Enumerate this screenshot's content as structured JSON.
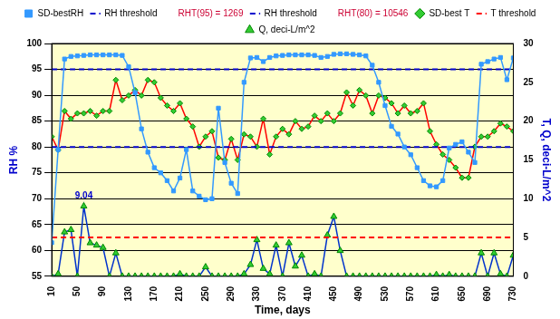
{
  "chart_data": {
    "type": "line",
    "x_label": "Time, days",
    "y_label": "RH %",
    "y2_label": "T, Q, deci-L/m^2",
    "xlim": [
      10,
      730
    ],
    "xticks": [
      10,
      50,
      90,
      130,
      170,
      210,
      250,
      290,
      330,
      370,
      410,
      450,
      490,
      530,
      570,
      610,
      650,
      690,
      730
    ],
    "ylim": [
      55,
      100
    ],
    "yticks": [
      55,
      60,
      65,
      70,
      75,
      80,
      85,
      90,
      95,
      100
    ],
    "y2lim": [
      0,
      30
    ],
    "y2ticks": [
      0,
      5,
      10,
      15,
      20,
      25,
      30
    ],
    "grid": true,
    "legend": "top",
    "x": [
      10,
      20,
      30,
      40,
      50,
      60,
      70,
      80,
      90,
      100,
      110,
      120,
      130,
      140,
      150,
      160,
      170,
      180,
      190,
      200,
      210,
      220,
      230,
      240,
      250,
      260,
      270,
      280,
      290,
      300,
      310,
      320,
      330,
      340,
      350,
      360,
      370,
      380,
      390,
      400,
      410,
      420,
      430,
      440,
      450,
      460,
      470,
      480,
      490,
      500,
      510,
      520,
      530,
      540,
      550,
      560,
      570,
      580,
      590,
      600,
      610,
      620,
      630,
      640,
      650,
      660,
      670,
      680,
      690,
      700,
      710,
      720,
      730
    ],
    "series": [
      {
        "name": "SD-bestRH",
        "color": "#3399ff",
        "marker": "square",
        "line_style": "solid",
        "values": [
          61.5,
          79.5,
          97,
          97.5,
          97.6,
          97.7,
          97.8,
          97.8,
          97.8,
          97.8,
          97.8,
          97.7,
          95.5,
          90.5,
          83.5,
          79,
          76,
          75,
          73.5,
          71.5,
          74,
          79.5,
          71.5,
          70.5,
          69.8,
          70,
          87.5,
          77,
          73,
          71,
          92.5,
          97.2,
          97.3,
          96.5,
          97.3,
          97.6,
          97.7,
          97.8,
          97.8,
          97.8,
          97.8,
          97.7,
          97.3,
          97.5,
          97.9,
          98,
          98,
          97.9,
          97.8,
          97.6,
          95.8,
          92.5,
          88,
          84,
          82.5,
          80,
          78.5,
          76,
          73.5,
          72.5,
          72.3,
          73.5,
          79.8,
          80.5,
          81,
          79,
          77,
          96,
          96.5,
          97,
          97.3,
          93,
          97.2
        ]
      },
      {
        "name": "RH threshold",
        "color": "#0000cc",
        "marker": "none",
        "line_style": "dashed",
        "value": 95,
        "note": "RHT(95) = 1269"
      },
      {
        "name": "RH threshold",
        "color": "#0000cc",
        "marker": "none",
        "line_style": "dashed",
        "value": 80,
        "note": "RHT(80) = 10546"
      },
      {
        "name": "SD-best T",
        "color": "#ff0000",
        "marker": "diamond",
        "line_style": "solid",
        "axis": "y2",
        "values": [
          18,
          16.3,
          21.3,
          20.3,
          21,
          21,
          21.3,
          20.7,
          21.3,
          21.3,
          25.3,
          22.7,
          23.3,
          24,
          23.3,
          25.3,
          25,
          23,
          22,
          21.3,
          22.3,
          20.3,
          19.3,
          16.7,
          18,
          18.7,
          15.3,
          15,
          17.7,
          15,
          18.3,
          18,
          16.7,
          20.3,
          15.7,
          18,
          19,
          18.3,
          20,
          19,
          19.3,
          20.7,
          20,
          21,
          20,
          21,
          23.7,
          22,
          24,
          23.3,
          21,
          23.3,
          23,
          22.3,
          21,
          22,
          21,
          21.3,
          22.3,
          18.7,
          17,
          15.7,
          15,
          14,
          12.7,
          12.7,
          16.7,
          18,
          18,
          18.7,
          19.7,
          19.3,
          18.7
        ]
      },
      {
        "name": "T threshold",
        "color": "#ff0000",
        "marker": "none",
        "line_style": "dashed",
        "axis": "y2",
        "value": 5
      },
      {
        "name": "Q, deci-L/m^2",
        "color": "#0033cc",
        "marker": "triangle",
        "line_style": "solid",
        "axis": "y2",
        "values": [
          0,
          0.3,
          5.7,
          6,
          0,
          9.04,
          4.3,
          4,
          3.7,
          0,
          3,
          0,
          0,
          0,
          0,
          0,
          0,
          0,
          0,
          0,
          0.3,
          0,
          0,
          0,
          1.2,
          0,
          0,
          0,
          0,
          0,
          0.3,
          1.5,
          4.7,
          1,
          0.3,
          4,
          0,
          4.3,
          1.3,
          2.7,
          0,
          0.3,
          0,
          5.3,
          7.7,
          3.3,
          0,
          0,
          0,
          0,
          0,
          0,
          0,
          0,
          0,
          0,
          0,
          0,
          0,
          0,
          0.2,
          0,
          0.2,
          0,
          0,
          0,
          0,
          3,
          0,
          3,
          0.3,
          0,
          2.7
        ]
      }
    ],
    "annotations": [
      {
        "text": "9.04",
        "x": 60,
        "y": 9.04,
        "axis": "y2"
      }
    ]
  }
}
